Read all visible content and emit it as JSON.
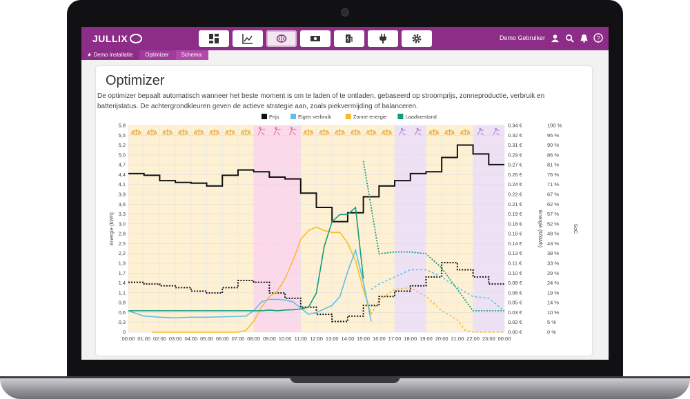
{
  "app": {
    "name": "JULLIX"
  },
  "nav": [
    {
      "key": "dashboard",
      "icon": "dashboard-grid-icon",
      "active": false
    },
    {
      "key": "graphs",
      "icon": "line-chart-icon",
      "active": false
    },
    {
      "key": "optimizer",
      "icon": "brain-icon",
      "active": true
    },
    {
      "key": "money",
      "icon": "banknote-icon",
      "active": false
    },
    {
      "key": "ev",
      "icon": "ev-charger-icon",
      "active": false
    },
    {
      "key": "plug",
      "icon": "plug-icon",
      "active": false
    },
    {
      "key": "settings",
      "icon": "gear-icon",
      "active": false
    }
  ],
  "user": {
    "name": "Demo Gebruiker"
  },
  "breadcrumb": [
    "Demo installatie",
    "Optimizer",
    "Schema"
  ],
  "page": {
    "title": "Optimizer",
    "description": "De optimizer bepaalt automatisch wanneer het beste moment is om te laden of te ontladen, gebaseerd op stroomprijs, zonneproductie, verbruik en batterijstatus. De achtergrondkleuren geven de actieve strategie aan, zoals piekvermijding of balanceren."
  },
  "colors": {
    "brand": "#8d2d87",
    "price": "#111111",
    "consumption": "#5bc0eb",
    "solar": "#f9bb2d",
    "soc": "#159a7c",
    "balance_bg": "#fdf0d3",
    "peak_bg": "#fbd9ea",
    "grid_bg": "#efe1f5"
  },
  "chart_data": {
    "type": "line",
    "legend": [
      "Prijs",
      "Eigen verbruik",
      "Zonne-energie",
      "Laadtoestand"
    ],
    "legend_position": "top-center",
    "y_left_label": "Energie (kWh)",
    "y_right1_label": "Energie (€/kWh)",
    "y_right2_label": "SoC",
    "y_left_ticks": [
      "0",
      "0,3",
      "0,6",
      "0,8",
      "1,1",
      "1,4",
      "1,7",
      "1,9",
      "2,2",
      "2,5",
      "2,8",
      "3,0",
      "3,3",
      "3,6",
      "3,9",
      "4,1",
      "4,4",
      "4,7",
      "5,0",
      "5,2",
      "5,5",
      "5,8"
    ],
    "y_right1_ticks": [
      "0.00 €",
      "0.02 €",
      "0.03 €",
      "0.05 €",
      "0.06 €",
      "0.08 €",
      "0.10 €",
      "0.11 €",
      "0.13 €",
      "0.14 €",
      "0.16 €",
      "0.18 €",
      "0.19 €",
      "0.21 €",
      "0.22 €",
      "0.24 €",
      "0.26 €",
      "0.27 €",
      "0.29 €",
      "0.31 €",
      "0.32 €",
      "0.34 €"
    ],
    "y_right2_ticks": [
      "0 %",
      "5 %",
      "10 %",
      "14 %",
      "19 %",
      "24 %",
      "29 %",
      "33 %",
      "38 %",
      "43 %",
      "48 %",
      "52 %",
      "57 %",
      "62 %",
      "67 %",
      "71 %",
      "76 %",
      "81 %",
      "86 %",
      "90 %",
      "95 %",
      "100 %"
    ],
    "x_ticks": [
      "00:00",
      "01:00",
      "02:00",
      "03:00",
      "04:00",
      "05:00",
      "06:00",
      "07:00",
      "08:00",
      "09:00",
      "10:00",
      "11:00",
      "12:00",
      "13:00",
      "14:00",
      "15:00",
      "16:00",
      "17:00",
      "18:00",
      "19:00",
      "20:00",
      "21:00",
      "22:00",
      "23:00",
      "00:00"
    ],
    "ylim_left": [
      0,
      5.8
    ],
    "strategy_bands": [
      {
        "from": 0,
        "to": 8,
        "strategy": "balance"
      },
      {
        "from": 8,
        "to": 11,
        "strategy": "peak"
      },
      {
        "from": 11,
        "to": 17,
        "strategy": "balance"
      },
      {
        "from": 17,
        "to": 19,
        "strategy": "grid"
      },
      {
        "from": 19,
        "to": 22,
        "strategy": "balance"
      },
      {
        "from": 22,
        "to": 24,
        "strategy": "grid"
      }
    ],
    "price_today": {
      "x": [
        0,
        1,
        2,
        3,
        4,
        5,
        6,
        7,
        8,
        9,
        10,
        11,
        12,
        13,
        14,
        15,
        16,
        17,
        18,
        19,
        20,
        21,
        22,
        23,
        24
      ],
      "y": [
        4.45,
        4.4,
        4.25,
        4.2,
        4.18,
        4.1,
        4.4,
        4.55,
        4.5,
        4.35,
        4.3,
        3.9,
        3.5,
        3.1,
        3.35,
        3.8,
        4.1,
        4.25,
        4.45,
        4.5,
        4.9,
        5.25,
        5.0,
        4.7,
        4.45
      ]
    },
    "price_tomorrow": {
      "x": [
        0,
        1,
        2,
        3,
        4,
        5,
        6,
        7,
        8,
        9,
        10,
        11,
        12,
        13,
        14,
        15,
        16,
        17,
        18,
        19,
        20,
        21,
        22,
        23,
        24
      ],
      "y": [
        1.4,
        1.35,
        1.3,
        1.25,
        1.15,
        1.1,
        1.25,
        1.45,
        1.4,
        1.1,
        0.95,
        0.7,
        0.5,
        0.3,
        0.45,
        0.75,
        1.0,
        1.15,
        1.3,
        1.55,
        1.95,
        1.75,
        1.55,
        1.35,
        1.3
      ]
    },
    "consumption": {
      "x": [
        0,
        1,
        2,
        3,
        4,
        5,
        6,
        7,
        7.5,
        8,
        8.5,
        9,
        9.5,
        10,
        10.5,
        11,
        11.5,
        12,
        12.5,
        13,
        13.5,
        14,
        14.5,
        15,
        15.5
      ],
      "y": [
        0.6,
        0.45,
        0.42,
        0.4,
        0.42,
        0.42,
        0.43,
        0.44,
        0.45,
        0.6,
        0.85,
        0.92,
        0.92,
        0.9,
        0.85,
        0.68,
        0.5,
        0.55,
        0.65,
        0.75,
        1.0,
        1.7,
        2.3,
        1.4,
        0.3
      ]
    },
    "consumption_forecast": {
      "x": [
        15.5,
        16,
        17,
        18,
        19,
        20,
        21,
        22,
        23,
        24
      ],
      "y": [
        1.2,
        1.35,
        1.55,
        1.75,
        1.75,
        1.55,
        1.25,
        1.0,
        0.95,
        0.6
      ]
    },
    "solar": {
      "x": [
        1.5,
        2,
        3,
        4,
        5,
        6,
        7,
        7.5,
        8,
        8.5,
        9,
        9.5,
        10,
        10.5,
        11,
        11.5,
        12,
        12.5,
        13,
        13.5,
        14,
        14.5,
        15,
        15.5
      ],
      "y": [
        0,
        0,
        0,
        0,
        0,
        0,
        0,
        0.05,
        0.3,
        0.7,
        1.0,
        1.15,
        1.5,
        2.0,
        2.6,
        2.85,
        2.95,
        2.85,
        2.8,
        2.8,
        2.5,
        2.0,
        1.2,
        0.5
      ]
    },
    "solar_forecast": {
      "x": [
        15.5,
        16,
        17,
        18,
        19,
        20,
        21,
        21.5,
        22,
        23,
        24
      ],
      "y": [
        0.5,
        0.9,
        1.2,
        1.25,
        1.0,
        0.6,
        0.35,
        0.05,
        0,
        0,
        0
      ]
    },
    "soc": {
      "x": [
        0,
        8,
        8.5,
        9,
        9.5,
        10,
        10.5,
        11,
        11.5,
        12,
        12.5,
        13,
        13.5,
        14,
        14.5,
        15
      ],
      "y": [
        0.6,
        0.6,
        0.6,
        0.62,
        0.6,
        0.62,
        0.63,
        0.65,
        0.7,
        1.1,
        2.4,
        3.1,
        3.3,
        3.3,
        3.5,
        1.5
      ]
    },
    "soc_forecast": {
      "x": [
        15,
        16,
        17,
        18,
        19,
        20,
        21,
        22,
        23,
        24
      ],
      "y": [
        4.8,
        2.2,
        2.25,
        2.25,
        2.2,
        1.8,
        1.2,
        0.6,
        0.6,
        0.6
      ]
    }
  }
}
